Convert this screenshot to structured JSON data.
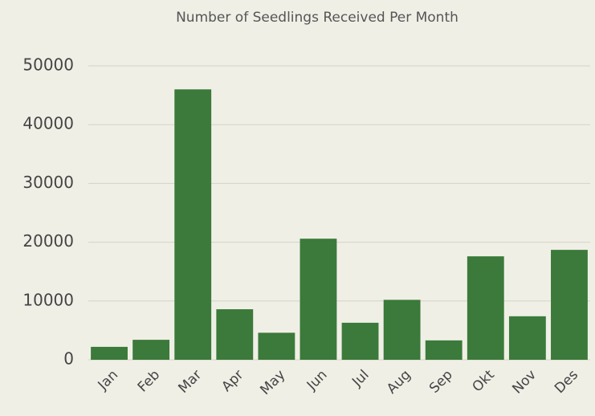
{
  "chart_data": {
    "type": "bar",
    "title": "Number of Seedlings Received Per Month",
    "categories": [
      "Jan",
      "Feb",
      "Mar",
      "Apr",
      "May",
      "Jun",
      "Jul",
      "Aug",
      "Sep",
      "Okt",
      "Nov",
      "Des"
    ],
    "values": [
      2200,
      3400,
      46000,
      8600,
      4600,
      20600,
      6300,
      10200,
      3300,
      17600,
      7400,
      18700
    ],
    "color": "#3b7a3a",
    "ylim": [
      0,
      50000
    ],
    "yticks": [
      0,
      10000,
      20000,
      30000,
      40000,
      50000
    ],
    "grid": true
  }
}
